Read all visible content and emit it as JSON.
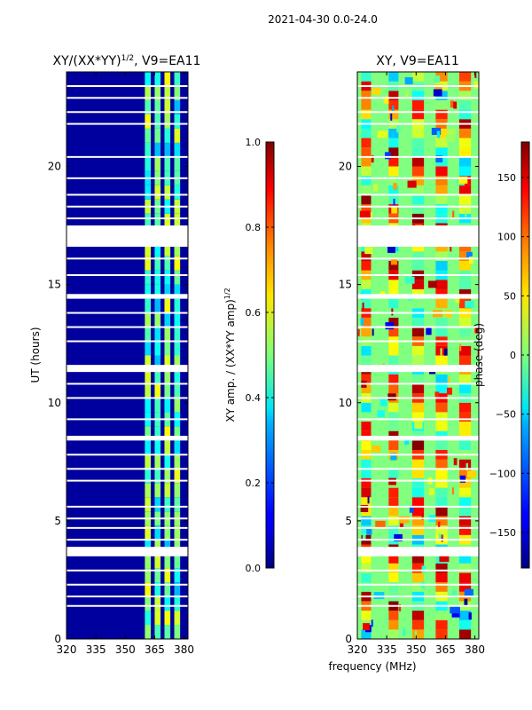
{
  "suptitle": "2021-04-30 0.0-24.0",
  "xlabel_shared": "frequency (MHz)",
  "chart_data": [
    {
      "type": "heatmap",
      "title_base": "XY/(XX*YY)",
      "title_sup": "1/2",
      "title_suffix": ", V9=EA11",
      "ylabel": "UT (hours)",
      "xlim": [
        320,
        382
      ],
      "ylim": [
        0,
        24
      ],
      "xticks": [
        320,
        335,
        350,
        365,
        380
      ],
      "yticks": [
        0,
        5,
        10,
        15,
        20
      ],
      "colorbar": {
        "label_base": "XY amp. / (XX*YY amp)",
        "label_sup": "1/2",
        "range": [
          0.0,
          1.0
        ],
        "ticks": [
          0.0,
          0.2,
          0.4,
          0.6,
          0.8,
          1.0
        ],
        "tick_labels": [
          "0.0",
          "0.2",
          "0.4",
          "0.6",
          "0.8",
          "1.0"
        ],
        "colormap": "jet"
      },
      "gaps_ut": [
        [
          17.5,
          16.6
        ],
        [
          14.6,
          14.4
        ],
        [
          11.6,
          11.3
        ],
        [
          8.6,
          8.4
        ],
        [
          3.9,
          3.5
        ]
      ],
      "blank_lines_ut": [
        23.4,
        22.9,
        22.3,
        21.8,
        20.4,
        19.5,
        18.8,
        18.3,
        17.8,
        16.1,
        15.4,
        13.8,
        13.2,
        12.6,
        10.8,
        10.2,
        9.3,
        7.8,
        7.2,
        6.7,
        5.6,
        5.1,
        4.7,
        4.2,
        2.9,
        2.3,
        1.8,
        1.4
      ],
      "signal_bands_mhz": [
        [
          360,
          363
        ],
        [
          365,
          368
        ],
        [
          370,
          373
        ],
        [
          375,
          378
        ]
      ],
      "signal_level": 0.55,
      "background_level": 0.03
    },
    {
      "type": "heatmap",
      "title": "XY, V9=EA11",
      "xlim": [
        320,
        382
      ],
      "ylim": [
        0,
        24
      ],
      "xticks": [
        320,
        335,
        350,
        365,
        380
      ],
      "yticks": [
        0,
        5,
        10,
        15,
        20
      ],
      "colorbar": {
        "label": "phase (deg)",
        "range": [
          -180,
          180
        ],
        "ticks": [
          -150,
          -100,
          -50,
          0,
          50,
          100,
          150
        ],
        "tick_labels": [
          "−150",
          "−100",
          "−50",
          "0",
          "50",
          "100",
          "150"
        ],
        "colormap": "jet"
      },
      "gaps_ut": [
        [
          17.5,
          16.6
        ],
        [
          14.6,
          14.4
        ],
        [
          11.6,
          11.3
        ],
        [
          8.6,
          8.4
        ],
        [
          3.9,
          3.5
        ]
      ],
      "blank_lines_ut": [
        23.4,
        22.9,
        22.3,
        21.8,
        20.4,
        19.5,
        18.8,
        18.3,
        17.8,
        16.1,
        15.4,
        13.8,
        13.2,
        12.6,
        10.8,
        10.2,
        9.3,
        7.8,
        7.2,
        6.7,
        5.6,
        5.1,
        4.7,
        4.2,
        2.9,
        2.3,
        1.8,
        1.4
      ],
      "phase_stripes_mhz": [
        [
          322,
          327
        ],
        [
          336,
          341
        ],
        [
          348,
          354
        ],
        [
          360,
          366
        ],
        [
          372,
          378
        ]
      ],
      "phase_values_deg": [
        -40,
        30,
        60,
        120,
        150,
        -20
      ]
    }
  ]
}
